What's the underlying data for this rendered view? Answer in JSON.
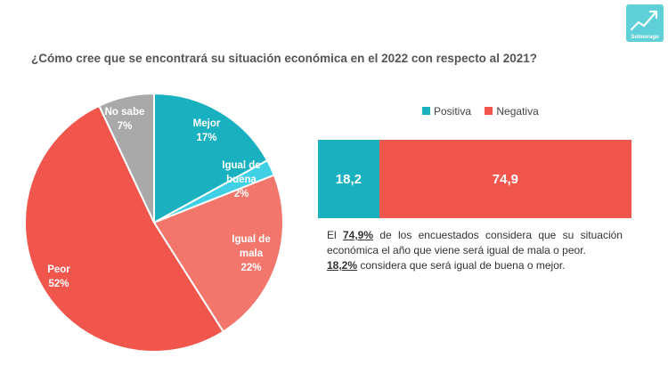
{
  "logo": {
    "text": "Solmorago"
  },
  "title": "¿Cómo cree que se encontrará su situación económica en el 2022 con respecto al 2021?",
  "colors": {
    "positive": "#19b0bf",
    "negative": "#f0564b",
    "mejor": "#19b0bf",
    "igual_buena": "#3fd0e6",
    "igual_mala": "#f2766b",
    "peor": "#f0564b",
    "no_sabe": "#a9a9a9"
  },
  "chart_data": [
    {
      "type": "pie",
      "slices": [
        {
          "label": "Mejor",
          "value_label": "17%",
          "value": 17
        },
        {
          "label": "Igual de buena",
          "value_label": "2%",
          "value": 2
        },
        {
          "label": "Igual de mala",
          "value_label": "22%",
          "value": 22
        },
        {
          "label": "Peor",
          "value_label": "52%",
          "value": 52
        },
        {
          "label": "No sabe",
          "value_label": "7%",
          "value": 7
        }
      ]
    },
    {
      "type": "bar",
      "orientation": "horizontal-stacked",
      "legend": [
        "Positiva",
        "Negativa"
      ],
      "legend_position": "top",
      "series": [
        {
          "name": "Positiva",
          "value": 18.2,
          "value_label": "18,2"
        },
        {
          "name": "Negativa",
          "value": 74.9,
          "value_label": "74,9"
        }
      ]
    }
  ],
  "description": {
    "line1_prefix": "El",
    "line1_highlight": "74,9%",
    "line1_suffix": "de los encuestados considera que su situación económica el año que viene será igual de mala o peor.",
    "line2_highlight": "18,2%",
    "line2_suffix": "considera que será igual de buena o mejor."
  }
}
